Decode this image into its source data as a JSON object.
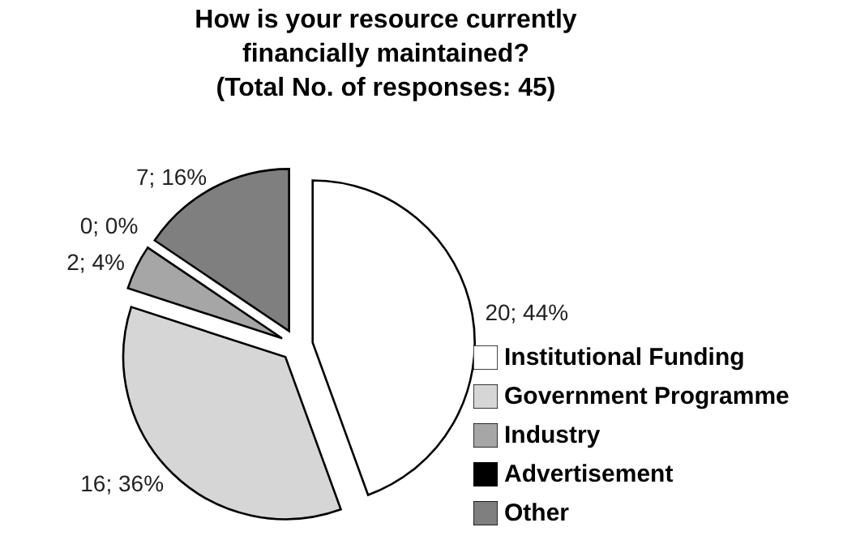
{
  "chart_data": {
    "type": "pie",
    "title": "How is your resource currently\nfinancially maintained?\n(Total No. of responses: 45)",
    "categories": [
      "Institutional Funding",
      "Government Programme",
      "Industry",
      "Advertisement",
      "Other"
    ],
    "values": [
      20,
      16,
      2,
      0,
      7
    ],
    "colors": [
      "#ffffff",
      "#d6d6d6",
      "#a6a6a6",
      "#000000",
      "#7f7f7f"
    ],
    "value_labels": [
      "20; 44%",
      "16; 36%",
      "2; 4%",
      "0; 0%",
      "7; 16%"
    ],
    "legend": "bottom right"
  }
}
